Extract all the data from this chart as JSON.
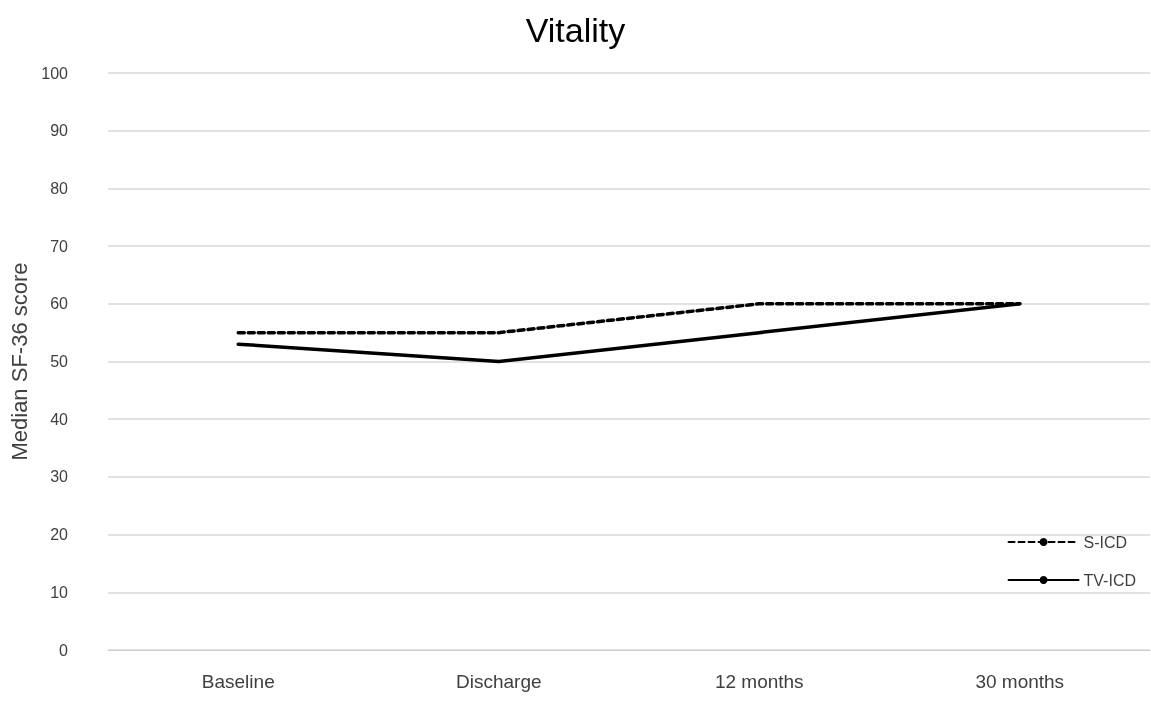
{
  "chart_data": {
    "type": "line",
    "title": "Vitality",
    "ylabel": "Median SF-36 score",
    "categories": [
      "Baseline",
      "Discharge",
      "12 months",
      "30 months"
    ],
    "series": [
      {
        "name": "S-ICD",
        "color": "#000000",
        "line_style": "dashed",
        "values": [
          55,
          55,
          60,
          60
        ]
      },
      {
        "name": "TV-ICD",
        "color": "#000000",
        "line_style": "solid",
        "values": [
          53,
          50,
          55,
          60
        ]
      }
    ],
    "ylim": [
      0,
      100
    ],
    "yticks": [
      0,
      10,
      20,
      30,
      40,
      50,
      60,
      70,
      80,
      90,
      100
    ],
    "grid": "y",
    "legend": "bottom right",
    "marker": "none"
  }
}
